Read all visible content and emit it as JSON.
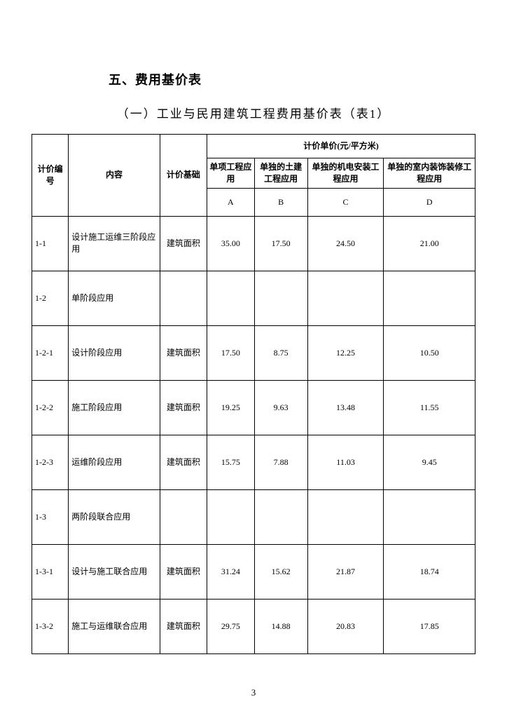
{
  "section_title": "五、费用基价表",
  "subtitle": "（一）工业与民用建筑工程费用基价表（表1）",
  "header": {
    "col_id": "计价编号",
    "col_content": "内容",
    "col_base": "计价基础",
    "unit_group": "计价单价(元/平方米)",
    "sub_a": "单项工程应用",
    "sub_b": "单独的土建工程应用",
    "sub_c": "单独的机电安装工程应用",
    "sub_d": "单独的室内装饰装修工程应用",
    "letter_a": "A",
    "letter_b": "B",
    "letter_c": "C",
    "letter_d": "D"
  },
  "rows": [
    {
      "id": "1-1",
      "content": "设计施工运维三阶段应用",
      "base": "建筑面积",
      "a": "35.00",
      "b": "17.50",
      "c": "24.50",
      "d": "21.00"
    },
    {
      "id": "1-2",
      "content": "单阶段应用",
      "base": "",
      "a": "",
      "b": "",
      "c": "",
      "d": ""
    },
    {
      "id": "1-2-1",
      "content": "设计阶段应用",
      "base": "建筑面积",
      "a": "17.50",
      "b": "8.75",
      "c": "12.25",
      "d": "10.50"
    },
    {
      "id": "1-2-2",
      "content": "施工阶段应用",
      "base": "建筑面积",
      "a": "19.25",
      "b": "9.63",
      "c": "13.48",
      "d": "11.55"
    },
    {
      "id": "1-2-3",
      "content": "运维阶段应用",
      "base": "建筑面积",
      "a": "15.75",
      "b": "7.88",
      "c": "11.03",
      "d": "9.45"
    },
    {
      "id": "1-3",
      "content": "两阶段联合应用",
      "base": "",
      "a": "",
      "b": "",
      "c": "",
      "d": ""
    },
    {
      "id": "1-3-1",
      "content": "设计与施工联合应用",
      "base": "建筑面积",
      "a": "31.24",
      "b": "15.62",
      "c": "21.87",
      "d": "18.74"
    },
    {
      "id": "1-3-2",
      "content": "施工与运维联合应用",
      "base": "建筑面积",
      "a": "29.75",
      "b": "14.88",
      "c": "20.83",
      "d": "17.85"
    }
  ],
  "page_number": "3"
}
